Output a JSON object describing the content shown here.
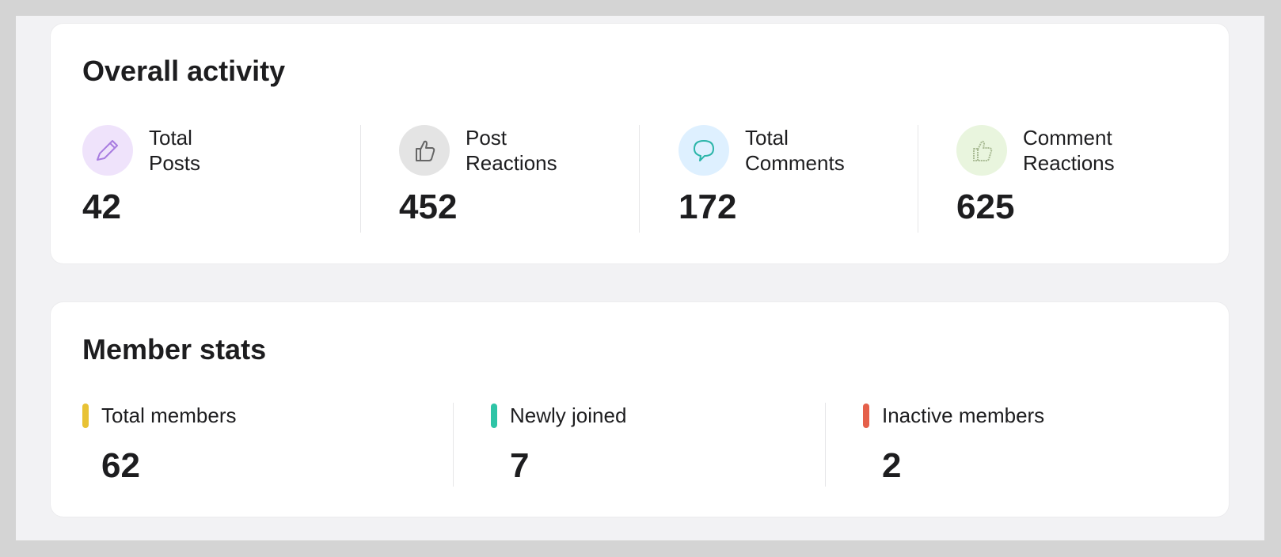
{
  "activity": {
    "title": "Overall activity",
    "items": [
      {
        "label": "Total Posts",
        "value": 42
      },
      {
        "label": "Post Reactions",
        "value": 452
      },
      {
        "label": "Total Comments",
        "value": 172
      },
      {
        "label": "Comment Reactions",
        "value": 625
      }
    ]
  },
  "members": {
    "title": "Member stats",
    "items": [
      {
        "label": "Total members",
        "value": 62
      },
      {
        "label": "Newly joined",
        "value": 7
      },
      {
        "label": "Inactive members",
        "value": 2
      }
    ]
  }
}
